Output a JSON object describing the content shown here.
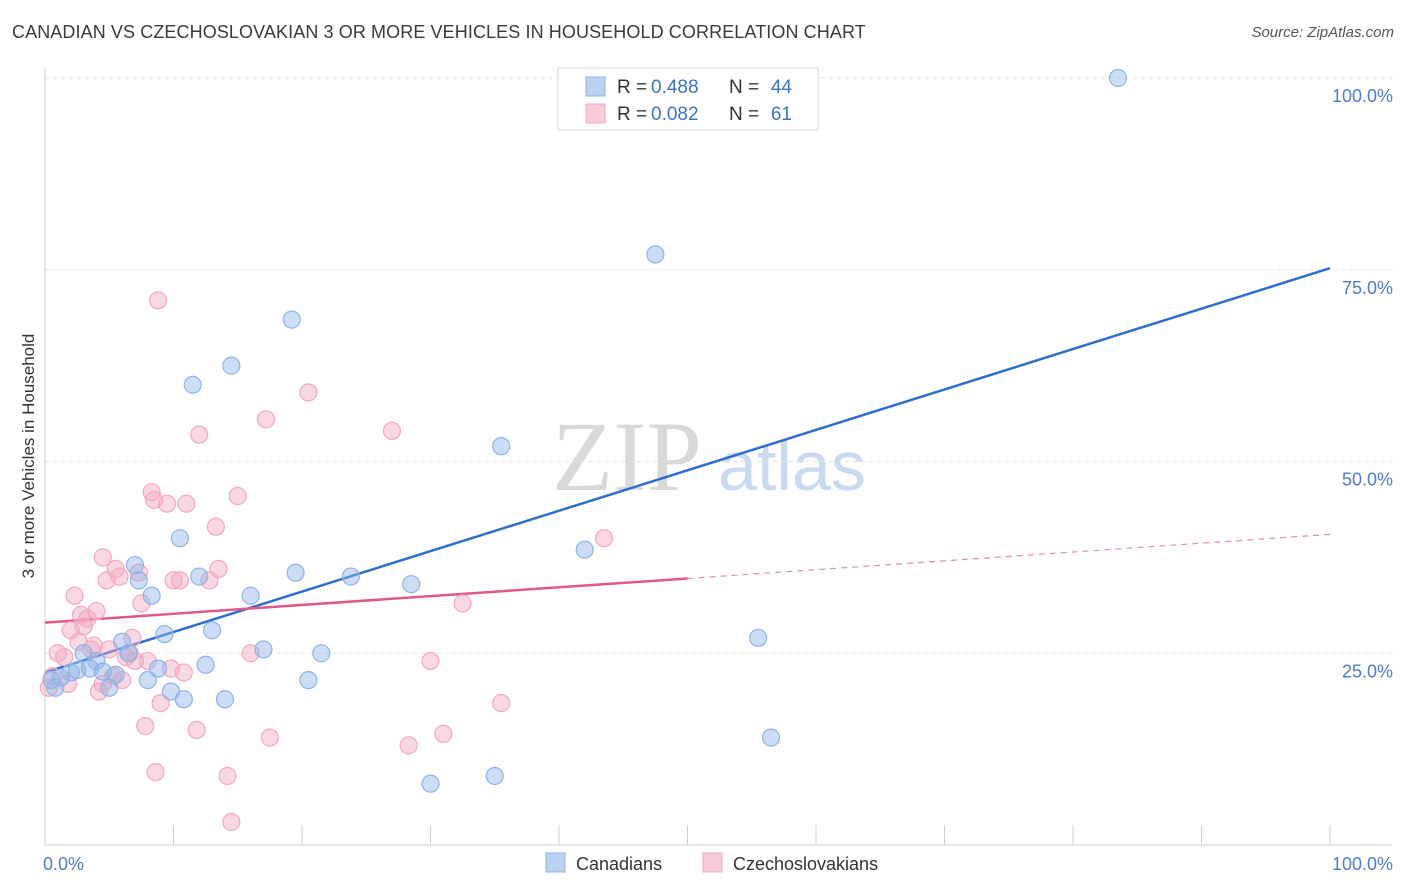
{
  "header": {
    "title": "CANADIAN VS CZECHOSLOVAKIAN 3 OR MORE VEHICLES IN HOUSEHOLD CORRELATION CHART",
    "source": "Source: ZipAtlas.com"
  },
  "watermark": {
    "zip": "ZIP",
    "atlas": "atlas"
  },
  "chart_data": {
    "type": "scatter",
    "title": "CANADIAN VS CZECHOSLOVAKIAN 3 OR MORE VEHICLES IN HOUSEHOLD CORRELATION CHART",
    "xlabel": "",
    "ylabel": "3 or more Vehicles in Household",
    "xlim": [
      0,
      100
    ],
    "ylim": [
      0,
      100
    ],
    "x_tick_labels": {
      "left": "0.0%",
      "right": "100.0%"
    },
    "y_ticks": [
      {
        "value": 100,
        "label": "100.0%"
      },
      {
        "value": 75,
        "label": "75.0%"
      },
      {
        "value": 50,
        "label": "50.0%"
      },
      {
        "value": 25,
        "label": "25.0%"
      }
    ],
    "grid": true,
    "legend_position": "top-center",
    "stats": [
      {
        "series": "Canadians",
        "r_label": "R =",
        "r": "0.488",
        "n_label": "N =",
        "n": "44"
      },
      {
        "series": "Czechoslovakians",
        "r_label": "R =",
        "r": "0.082",
        "n_label": "N =",
        "n": "61"
      }
    ],
    "series": [
      {
        "name": "Canadians",
        "color": "#8fb4e8",
        "line_color": "#2f6fcc",
        "trend": {
          "x0": 0,
          "y0": 22.5,
          "x1": 100,
          "y1": 75.2,
          "dashed_from": null
        },
        "points": [
          [
            0.5,
            21.5
          ],
          [
            0.8,
            20.5
          ],
          [
            1.2,
            21.8
          ],
          [
            2.0,
            22.5
          ],
          [
            2.5,
            22.8
          ],
          [
            3.0,
            25.0
          ],
          [
            3.5,
            23.0
          ],
          [
            4.0,
            24.0
          ],
          [
            4.5,
            22.6
          ],
          [
            5.0,
            20.5
          ],
          [
            5.5,
            22.2
          ],
          [
            6.0,
            26.5
          ],
          [
            6.5,
            25.0
          ],
          [
            7.0,
            36.5
          ],
          [
            7.3,
            34.5
          ],
          [
            8.0,
            21.5
          ],
          [
            8.3,
            32.5
          ],
          [
            8.8,
            23.0
          ],
          [
            9.3,
            27.5
          ],
          [
            9.8,
            20.0
          ],
          [
            10.5,
            40.0
          ],
          [
            10.8,
            19.0
          ],
          [
            11.5,
            60.0
          ],
          [
            12.0,
            35.0
          ],
          [
            12.5,
            23.5
          ],
          [
            13.0,
            28.0
          ],
          [
            14.0,
            19.0
          ],
          [
            14.5,
            62.5
          ],
          [
            16.0,
            32.5
          ],
          [
            17.0,
            25.5
          ],
          [
            19.2,
            68.5
          ],
          [
            19.5,
            35.5
          ],
          [
            20.5,
            21.5
          ],
          [
            21.5,
            25.0
          ],
          [
            23.8,
            35.0
          ],
          [
            28.5,
            34.0
          ],
          [
            30.0,
            8.0
          ],
          [
            35.0,
            9.0
          ],
          [
            35.5,
            52.0
          ],
          [
            42.0,
            38.5
          ],
          [
            47.5,
            77.0
          ],
          [
            55.5,
            27.0
          ],
          [
            56.5,
            14.0
          ],
          [
            83.5,
            100.0
          ]
        ]
      },
      {
        "name": "Czechoslovakians",
        "color": "#f3a8c1",
        "line_color": "#e0588a",
        "trend": {
          "x0": 0,
          "y0": 29.0,
          "x1": 100,
          "y1": 40.5,
          "dashed_from": 50
        },
        "points": [
          [
            0.3,
            20.5
          ],
          [
            0.6,
            22.0
          ],
          [
            1.0,
            25.0
          ],
          [
            1.5,
            24.5
          ],
          [
            1.8,
            21.0
          ],
          [
            2.0,
            28.0
          ],
          [
            2.3,
            32.5
          ],
          [
            2.6,
            26.5
          ],
          [
            2.8,
            30.0
          ],
          [
            3.0,
            28.5
          ],
          [
            3.3,
            29.5
          ],
          [
            3.6,
            25.5
          ],
          [
            3.8,
            26.0
          ],
          [
            4.0,
            30.5
          ],
          [
            4.2,
            20.0
          ],
          [
            4.5,
            21.0
          ],
          [
            4.5,
            37.5
          ],
          [
            4.8,
            34.5
          ],
          [
            5.0,
            25.5
          ],
          [
            5.3,
            22.0
          ],
          [
            5.5,
            36.0
          ],
          [
            5.8,
            35.0
          ],
          [
            6.0,
            21.5
          ],
          [
            6.3,
            24.5
          ],
          [
            6.6,
            25.0
          ],
          [
            6.8,
            27.0
          ],
          [
            7.0,
            24.0
          ],
          [
            7.3,
            35.5
          ],
          [
            7.5,
            31.5
          ],
          [
            7.8,
            15.5
          ],
          [
            8.3,
            46.0
          ],
          [
            8.5,
            45.0
          ],
          [
            8.6,
            9.5
          ],
          [
            8.8,
            71.0
          ],
          [
            9.0,
            18.5
          ],
          [
            9.5,
            44.5
          ],
          [
            9.8,
            23.0
          ],
          [
            10.0,
            34.5
          ],
          [
            10.5,
            34.5
          ],
          [
            10.8,
            22.5
          ],
          [
            11.0,
            44.5
          ],
          [
            11.8,
            15.0
          ],
          [
            12.0,
            53.5
          ],
          [
            12.8,
            34.5
          ],
          [
            13.3,
            41.5
          ],
          [
            13.5,
            36.0
          ],
          [
            14.2,
            9.0
          ],
          [
            14.5,
            3.0
          ],
          [
            15.0,
            45.5
          ],
          [
            16.0,
            25.0
          ],
          [
            17.2,
            55.5
          ],
          [
            17.5,
            14.0
          ],
          [
            20.5,
            59.0
          ],
          [
            27.0,
            54.0
          ],
          [
            28.3,
            13.0
          ],
          [
            30.0,
            24.0
          ],
          [
            31.0,
            14.5
          ],
          [
            32.5,
            31.5
          ],
          [
            35.5,
            18.5
          ],
          [
            43.5,
            40.0
          ],
          [
            8.0,
            24.0
          ]
        ]
      }
    ]
  },
  "bottom_legend": [
    {
      "label": "Canadians",
      "color": "#8fb4e8"
    },
    {
      "label": "Czechoslovakians",
      "color": "#f3a8c1"
    }
  ]
}
